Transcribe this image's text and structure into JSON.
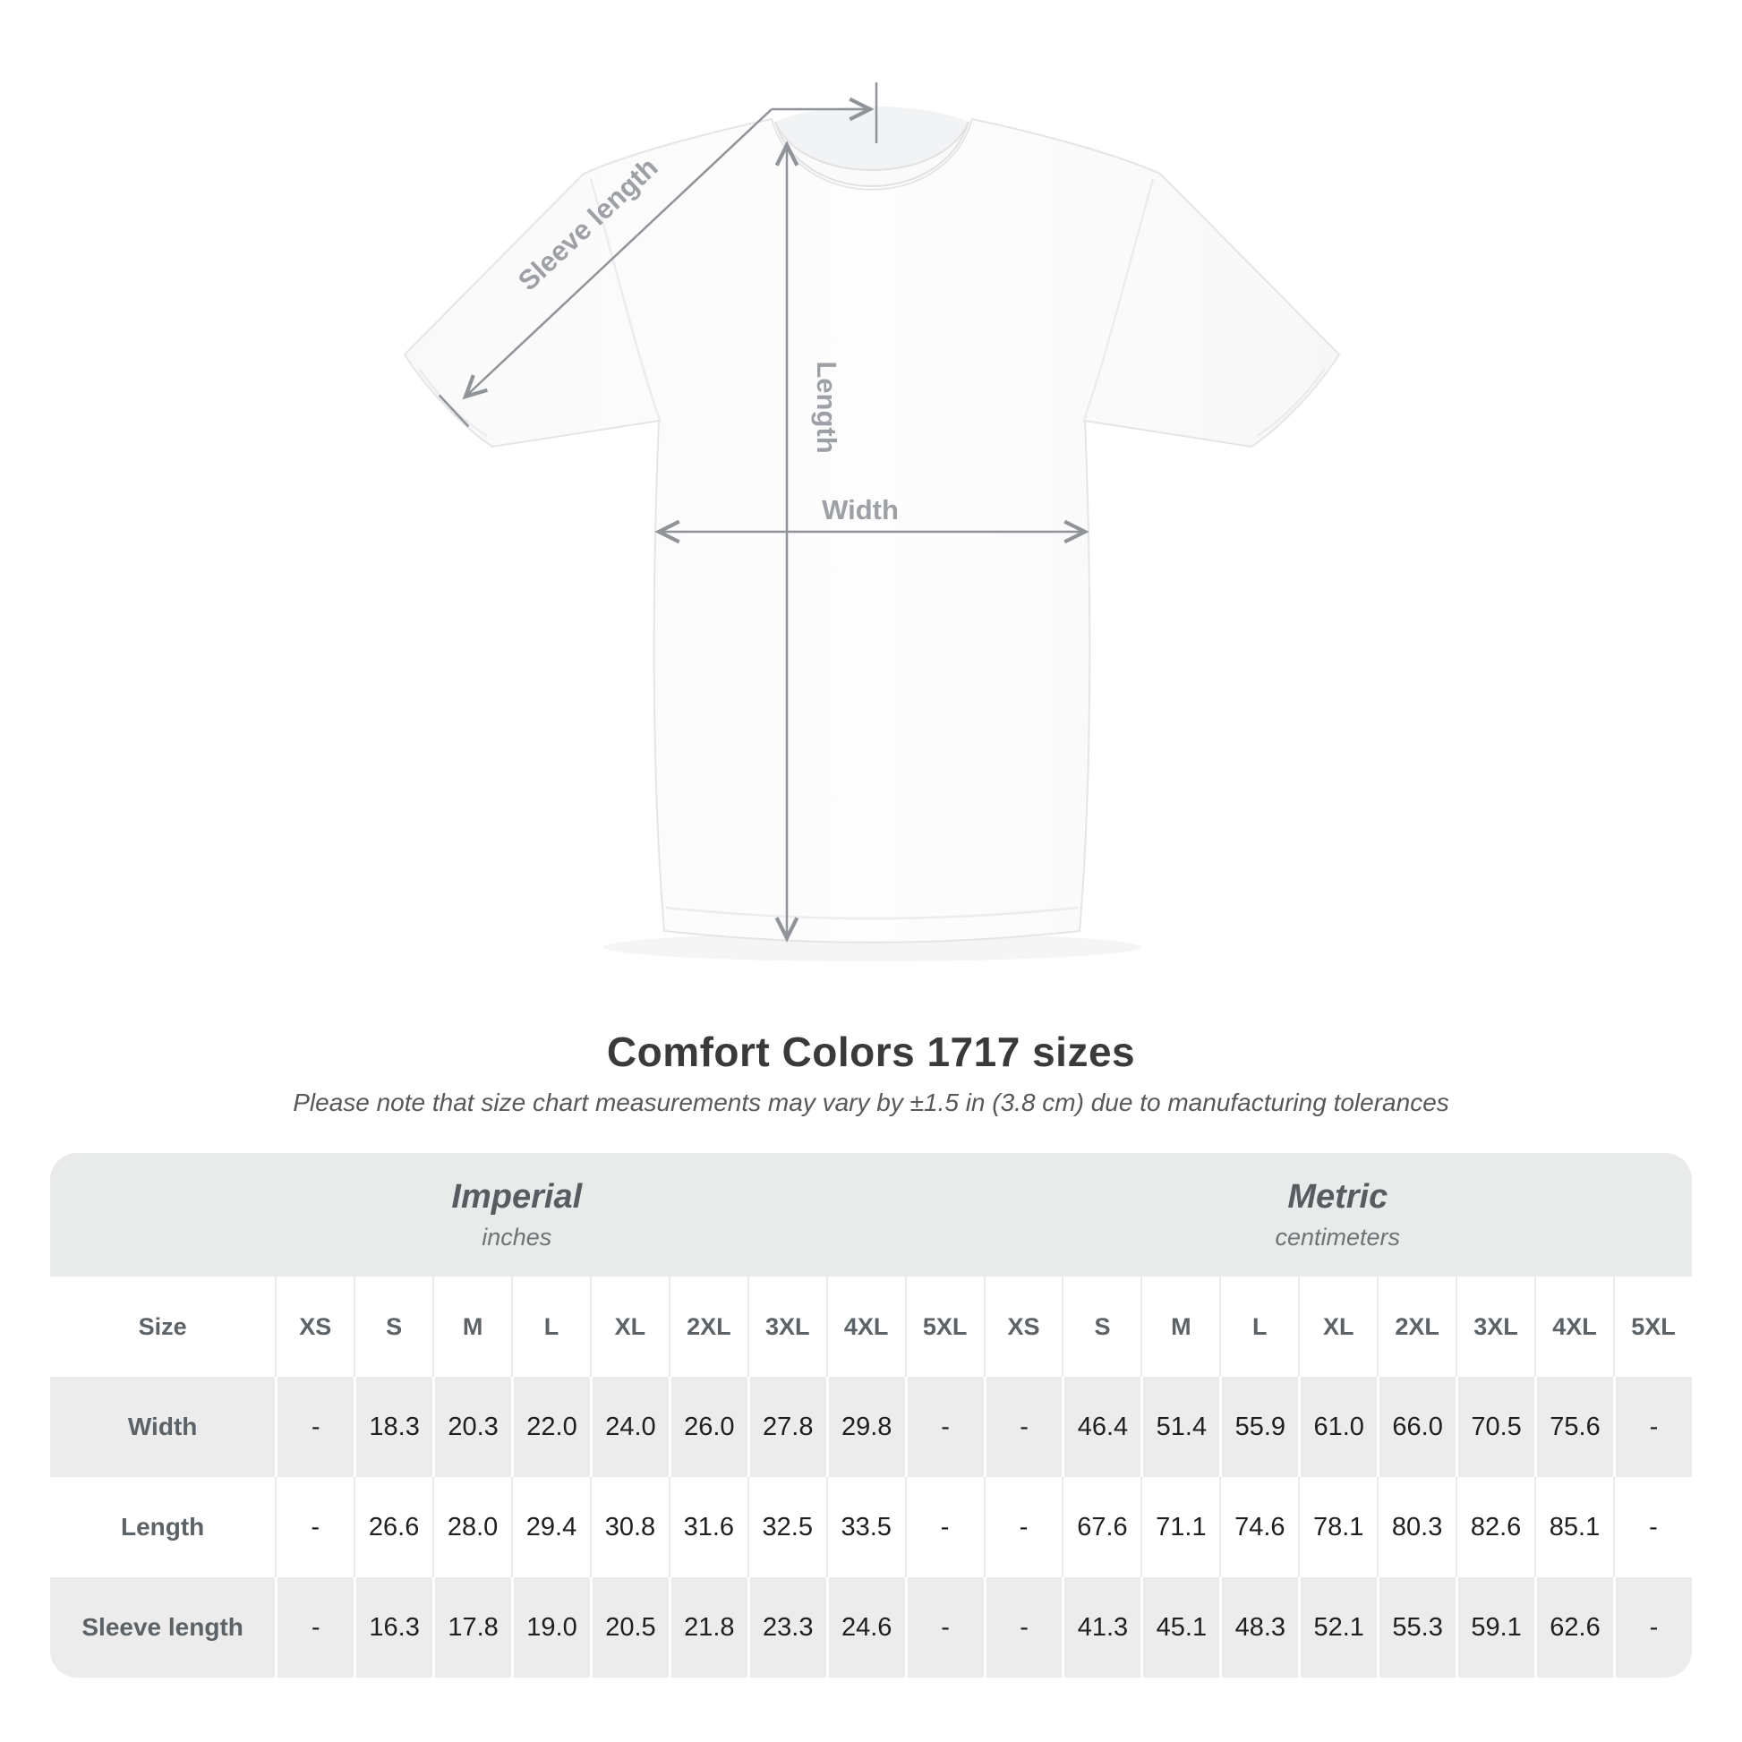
{
  "diagram": {
    "sleeve_length_label": "Sleeve length",
    "length_label": "Length",
    "width_label": "Width"
  },
  "chart_data": {
    "type": "table",
    "title": "Comfort Colors 1717 sizes",
    "subtitle": "Please note that size chart measurements may vary by ±1.5 in (3.8 cm) due to manufacturing tolerances",
    "unit_groups": [
      {
        "label": "Imperial",
        "sublabel": "inches"
      },
      {
        "label": "Metric",
        "sublabel": "centimeters"
      }
    ],
    "size_column_header": "Size",
    "sizes": [
      "XS",
      "S",
      "M",
      "L",
      "XL",
      "2XL",
      "3XL",
      "4XL",
      "5XL"
    ],
    "rows": [
      {
        "label": "Width",
        "imperial": [
          "-",
          "18.3",
          "20.3",
          "22.0",
          "24.0",
          "26.0",
          "27.8",
          "29.8",
          "-"
        ],
        "metric": [
          "-",
          "46.4",
          "51.4",
          "55.9",
          "61.0",
          "66.0",
          "70.5",
          "75.6",
          "-"
        ]
      },
      {
        "label": "Length",
        "imperial": [
          "-",
          "26.6",
          "28.0",
          "29.4",
          "30.8",
          "31.6",
          "32.5",
          "33.5",
          "-"
        ],
        "metric": [
          "-",
          "67.6",
          "71.1",
          "74.6",
          "78.1",
          "80.3",
          "82.6",
          "85.1",
          "-"
        ]
      },
      {
        "label": "Sleeve length",
        "imperial": [
          "-",
          "16.3",
          "17.8",
          "19.0",
          "20.5",
          "21.8",
          "23.3",
          "24.6",
          "-"
        ],
        "metric": [
          "-",
          "41.3",
          "45.1",
          "48.3",
          "52.1",
          "55.3",
          "59.1",
          "62.6",
          "-"
        ]
      }
    ]
  },
  "colors": {
    "table_band": "#e9eaea",
    "row_shade": "#ececec",
    "header_text": "#5c6266",
    "value_text": "#1f1f1f",
    "arrow": "#909398",
    "arrow_label": "#9da0a4",
    "title_text": "#3a3a3a",
    "subtitle_text": "#585858"
  }
}
